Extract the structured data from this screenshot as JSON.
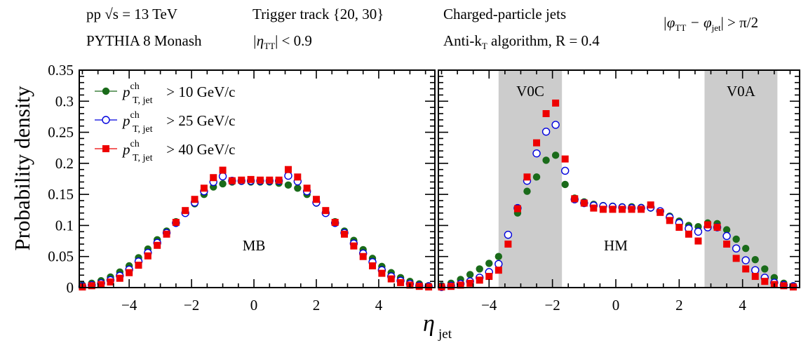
{
  "header": {
    "l1a": "pp  √s = 13 TeV",
    "l1b": "PYTHIA 8 Monash",
    "l2a": "Trigger track {20, 30}",
    "l2b": "|η",
    "l2b_sub": "TT",
    "l2b_rest": "| < 0.9",
    "l3a": "Charged-particle jets",
    "l3b": "Anti-k",
    "l3b_sub": "T",
    "l3b_rest": " algorithm, R = 0.4",
    "l4": "|φ",
    "l4_sub1": "TT",
    "l4_mid": " − φ",
    "l4_sub2": "jet",
    "l4_rest": "| > π/2"
  },
  "chart_data": {
    "type": "scatter",
    "ylabel": "Probability density",
    "xlabel": "η",
    "xlabel_sub": "jet",
    "xlim": [
      -5.6,
      5.8
    ],
    "ylim": [
      0,
      0.35
    ],
    "xticks": [
      "−4",
      "−2",
      "0",
      "2",
      "4"
    ],
    "yticks": [
      "0",
      "0.05",
      "0.1",
      "0.15",
      "0.2",
      "0.25",
      "0.3",
      "0.35"
    ],
    "legend": [
      {
        "label": "p",
        "sup": "ch",
        "sub": "T, jet",
        "rest": " > 10 GeV/c",
        "color": "#1a6b1a",
        "marker": "filled-circle"
      },
      {
        "label": "p",
        "sup": "ch",
        "sub": "T, jet",
        "rest": " > 25 GeV/c",
        "color": "#0000dd",
        "marker": "open-circle"
      },
      {
        "label": "p",
        "sup": "ch",
        "sub": "T, jet",
        "rest": " > 40 GeV/c",
        "color": "#ee0000",
        "marker": "filled-square"
      }
    ],
    "panels": [
      {
        "label": "MB",
        "x": [
          -5.5,
          -5.2,
          -4.9,
          -4.6,
          -4.3,
          -4.0,
          -3.7,
          -3.4,
          -3.1,
          -2.8,
          -2.5,
          -2.2,
          -1.9,
          -1.6,
          -1.3,
          -1.0,
          -0.7,
          -0.4,
          -0.1,
          0.2,
          0.5,
          0.8,
          1.1,
          1.4,
          1.7,
          2.0,
          2.3,
          2.6,
          2.9,
          3.2,
          3.5,
          3.8,
          4.1,
          4.4,
          4.7,
          5.0,
          5.3,
          5.6
        ],
        "series": [
          {
            "name": "10",
            "values": [
              0.004,
              0.007,
              0.011,
              0.017,
              0.025,
              0.035,
              0.048,
              0.062,
              0.077,
              0.091,
              0.106,
              0.12,
              0.135,
              0.15,
              0.162,
              0.167,
              0.17,
              0.171,
              0.17,
              0.17,
              0.17,
              0.168,
              0.165,
              0.16,
              0.15,
              0.136,
              0.121,
              0.106,
              0.091,
              0.076,
              0.061,
              0.047,
              0.034,
              0.024,
              0.016,
              0.01,
              0.006,
              0.003
            ]
          },
          {
            "name": "25",
            "values": [
              0.002,
              0.004,
              0.007,
              0.012,
              0.019,
              0.029,
              0.042,
              0.056,
              0.072,
              0.088,
              0.104,
              0.12,
              0.137,
              0.155,
              0.17,
              0.179,
              0.172,
              0.172,
              0.172,
              0.172,
              0.172,
              0.172,
              0.18,
              0.171,
              0.155,
              0.137,
              0.12,
              0.104,
              0.088,
              0.071,
              0.055,
              0.041,
              0.028,
              0.018,
              0.011,
              0.006,
              0.003,
              0.002
            ]
          },
          {
            "name": "40",
            "values": [
              0.001,
              0.003,
              0.005,
              0.009,
              0.015,
              0.024,
              0.036,
              0.051,
              0.068,
              0.086,
              0.105,
              0.124,
              0.142,
              0.16,
              0.177,
              0.189,
              0.172,
              0.173,
              0.174,
              0.173,
              0.173,
              0.173,
              0.19,
              0.178,
              0.16,
              0.142,
              0.124,
              0.105,
              0.086,
              0.067,
              0.05,
              0.035,
              0.023,
              0.014,
              0.008,
              0.004,
              0.002,
              0.001
            ]
          }
        ]
      },
      {
        "label": "HM",
        "bands": [
          {
            "label": "V0C",
            "from": -3.7,
            "to": -1.7
          },
          {
            "label": "V0A",
            "from": 2.8,
            "to": 5.1
          }
        ],
        "x": [
          -5.5,
          -5.2,
          -4.9,
          -4.6,
          -4.3,
          -4.0,
          -3.7,
          -3.4,
          -3.1,
          -2.8,
          -2.5,
          -2.2,
          -1.9,
          -1.6,
          -1.3,
          -1.0,
          -0.7,
          -0.4,
          -0.1,
          0.2,
          0.5,
          0.8,
          1.1,
          1.4,
          1.7,
          2.0,
          2.3,
          2.6,
          2.9,
          3.2,
          3.5,
          3.8,
          4.1,
          4.4,
          4.7,
          5.0,
          5.3,
          5.6
        ],
        "series": [
          {
            "name": "10",
            "values": [
              0.003,
              0.007,
              0.013,
              0.021,
              0.03,
              0.039,
              0.05,
              0.085,
              0.12,
              0.155,
              0.178,
              0.205,
              0.213,
              0.166,
              0.144,
              0.138,
              0.134,
              0.132,
              0.131,
              0.13,
              0.13,
              0.129,
              0.128,
              0.122,
              0.115,
              0.107,
              0.1,
              0.098,
              0.104,
              0.103,
              0.093,
              0.078,
              0.063,
              0.045,
              0.03,
              0.016,
              0.007,
              0.003
            ]
          },
          {
            "name": "25",
            "values": [
              0.001,
              0.003,
              0.006,
              0.01,
              0.016,
              0.025,
              0.038,
              0.085,
              0.128,
              0.172,
              0.216,
              0.251,
              0.262,
              0.188,
              0.142,
              0.136,
              0.132,
              0.131,
              0.13,
              0.129,
              0.128,
              0.128,
              0.129,
              0.123,
              0.113,
              0.104,
              0.095,
              0.09,
              0.097,
              0.097,
              0.083,
              0.063,
              0.044,
              0.028,
              0.016,
              0.008,
              0.004,
              0.002
            ]
          },
          {
            "name": "40",
            "values": [
              0.001,
              0.002,
              0.004,
              0.007,
              0.012,
              0.018,
              0.028,
              0.07,
              0.127,
              0.178,
              0.233,
              0.28,
              0.297,
              0.207,
              0.143,
              0.136,
              0.128,
              0.126,
              0.126,
              0.126,
              0.126,
              0.126,
              0.133,
              0.121,
              0.108,
              0.097,
              0.086,
              0.075,
              0.101,
              0.097,
              0.07,
              0.047,
              0.03,
              0.018,
              0.01,
              0.005,
              0.003,
              0.001
            ]
          }
        ]
      }
    ]
  }
}
